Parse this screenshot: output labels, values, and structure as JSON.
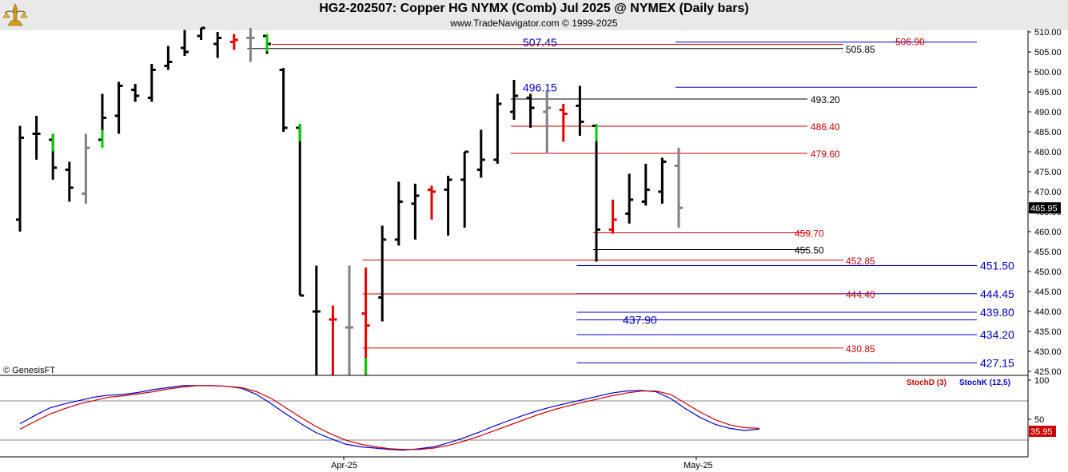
{
  "header": {
    "title": "HG2-202507:  Copper HG NYMX (Comb) Jul 2025 @ NYMEX  (Daily bars)",
    "subtitle": "www.TradeNavigator.com © 1999-2025"
  },
  "copyright": "© GenesisFT",
  "colors": {
    "up": "#000000",
    "down": "#000000",
    "red_bar": "#e60000",
    "gray_bar": "#808080",
    "green": "#00cc00",
    "level_red": "#cc0000",
    "level_blue": "#0000cc",
    "level_black": "#000000",
    "stochD": "#cc0000",
    "stochK": "#0000cc",
    "price_badge_bg": "#000000"
  },
  "chart_data": [
    {
      "type": "ohlc",
      "y_ticks": [
        "510.00",
        "505.00",
        "500.00",
        "495.00",
        "490.00",
        "485.00",
        "480.00",
        "475.00",
        "470.00",
        "465.00",
        "460.00",
        "455.00",
        "450.00",
        "445.00",
        "440.00",
        "435.00",
        "430.00",
        "425.00"
      ],
      "ylim": [
        424,
        511
      ],
      "last_price": "465.95",
      "bars": [
        {
          "o": 463.0,
          "h": 486.5,
          "l": 460.0,
          "c": 483.5,
          "color": "black"
        },
        {
          "o": 484.5,
          "h": 489.0,
          "l": 478.0,
          "c": 484.5,
          "color": "black"
        },
        {
          "o": 483.0,
          "h": 484.5,
          "l": 473.0,
          "c": 476.0,
          "color": "black",
          "green_top": true
        },
        {
          "o": 475.5,
          "h": 477.5,
          "l": 467.5,
          "c": 471.0,
          "color": "black"
        },
        {
          "o": 469.5,
          "h": 484.5,
          "l": 467.0,
          "c": 481.0,
          "color": "gray"
        },
        {
          "o": 483.0,
          "h": 494.5,
          "l": 481.0,
          "c": 488.5,
          "color": "black",
          "green_top": false,
          "green_bottom": true
        },
        {
          "o": 489.0,
          "h": 497.5,
          "l": 484.5,
          "c": 496.5,
          "color": "black"
        },
        {
          "o": 495.5,
          "h": 497.0,
          "l": 492.5,
          "c": 494.0,
          "color": "black"
        },
        {
          "o": 493.5,
          "h": 502.0,
          "l": 492.5,
          "c": 500.5,
          "color": "black"
        },
        {
          "o": 501.5,
          "h": 506.5,
          "l": 500.5,
          "c": 502.5,
          "color": "black"
        },
        {
          "o": 506.0,
          "h": 510.5,
          "l": 504.0,
          "c": 505.0,
          "color": "black"
        },
        {
          "o": 509.0,
          "h": 512.0,
          "l": 508.0,
          "c": 511.0,
          "color": "black"
        },
        {
          "o": 507.0,
          "h": 510.0,
          "l": 503.5,
          "c": 508.5,
          "color": "black"
        },
        {
          "o": 507.5,
          "h": 509.5,
          "l": 505.5,
          "c": 508.0,
          "color": "red"
        },
        {
          "o": 508.5,
          "h": 511.0,
          "l": 502.5,
          "c": 508.5,
          "color": "gray"
        },
        {
          "o": 509.0,
          "h": 509.5,
          "l": 504.5,
          "c": 507.0,
          "color": "black",
          "green_top": true
        },
        {
          "o": 500.5,
          "h": 501.0,
          "l": 485.0,
          "c": 486.0,
          "color": "black"
        },
        {
          "o": 486.0,
          "h": 487.0,
          "l": 444.0,
          "c": 444.0,
          "color": "black",
          "green_top": true
        },
        {
          "o": 440.0,
          "h": 451.5,
          "l": 424.0,
          "c": 440.0,
          "color": "black"
        },
        {
          "o": 438.0,
          "h": 441.5,
          "l": 424.0,
          "c": 438.0,
          "color": "red"
        },
        {
          "o": 436.0,
          "h": 451.5,
          "l": 424.0,
          "c": 436.0,
          "color": "gray"
        },
        {
          "o": 439.5,
          "h": 451.0,
          "l": 424.0,
          "c": 436.5,
          "color": "red",
          "green_bottom": true
        },
        {
          "o": 443.5,
          "h": 461.5,
          "l": 437.5,
          "c": 458.0,
          "color": "black"
        },
        {
          "o": 458.0,
          "h": 472.5,
          "l": 456.5,
          "c": 467.5,
          "color": "black"
        },
        {
          "o": 467.0,
          "h": 472.0,
          "l": 458.0,
          "c": 469.0,
          "color": "black"
        },
        {
          "o": 470.5,
          "h": 471.5,
          "l": 463.0,
          "c": 470.0,
          "color": "red"
        },
        {
          "o": 470.5,
          "h": 474.0,
          "l": 459.0,
          "c": 473.0,
          "color": "black"
        },
        {
          "o": 473.0,
          "h": 480.0,
          "l": 461.0,
          "c": 480.0,
          "color": "black"
        },
        {
          "o": 475.5,
          "h": 485.5,
          "l": 473.5,
          "c": 478.0,
          "color": "black"
        },
        {
          "o": 478.0,
          "h": 494.5,
          "l": 477.0,
          "c": 492.0,
          "color": "black"
        },
        {
          "o": 490.0,
          "h": 498.0,
          "l": 488.0,
          "c": 494.0,
          "color": "black"
        },
        {
          "o": 493.5,
          "h": 494.5,
          "l": 486.0,
          "c": 491.0,
          "color": "black"
        },
        {
          "o": 490.0,
          "h": 495.0,
          "l": 479.5,
          "c": 491.0,
          "color": "gray"
        },
        {
          "o": 490.5,
          "h": 492.0,
          "l": 482.5,
          "c": 489.5,
          "color": "red"
        },
        {
          "o": 491.5,
          "h": 496.5,
          "l": 484.0,
          "c": 487.5,
          "color": "black",
          "green_top": false
        },
        {
          "o": 486.5,
          "h": 487.0,
          "l": 452.5,
          "c": 460.5,
          "color": "black",
          "green_top": true
        },
        {
          "o": 460.5,
          "h": 468.0,
          "l": 459.5,
          "c": 463.0,
          "color": "red"
        },
        {
          "o": 464.5,
          "h": 474.5,
          "l": 462.0,
          "c": 468.0,
          "color": "black"
        },
        {
          "o": 467.5,
          "h": 477.0,
          "l": 466.5,
          "c": 470.5,
          "color": "black"
        },
        {
          "o": 470.0,
          "h": 478.5,
          "l": 467.0,
          "c": 477.5,
          "color": "black"
        },
        {
          "o": 476.5,
          "h": 481.0,
          "l": 461.0,
          "c": 465.95,
          "color": "gray"
        }
      ],
      "levels": [
        {
          "value": 507.45,
          "label": "507.45",
          "color": "blue",
          "from": 40,
          "to": 0,
          "label_at": 17,
          "big": true
        },
        {
          "value": 506.9,
          "label": "506.90",
          "color": "red",
          "from": 0,
          "to": 0,
          "label_at": 27,
          "big": false
        },
        {
          "value": 505.85,
          "label": "505.85",
          "color": "black",
          "from": 14,
          "to": 0,
          "label_at": 25,
          "big": false
        },
        {
          "value": 496.15,
          "label": "496.15",
          "color": "blue",
          "from": 40,
          "to": 0,
          "label_at": 21,
          "big": true
        },
        {
          "value": 493.2,
          "label": "493.20",
          "color": "black",
          "from": 30,
          "to": 0,
          "label_at": 34,
          "big": false
        },
        {
          "value": 486.4,
          "label": "486.40",
          "color": "red",
          "from": 30,
          "to": 0,
          "label_at": 34,
          "big": false
        },
        {
          "value": 479.6,
          "label": "479.60",
          "color": "red",
          "from": 30,
          "to": 0,
          "label_at": 34,
          "big": false
        },
        {
          "value": 459.7,
          "label": "459.70",
          "color": "red",
          "from": 35,
          "to": 0,
          "label_at": 38,
          "big": false
        },
        {
          "value": 455.5,
          "label": "455.50",
          "color": "black",
          "from": 35,
          "to": 0,
          "label_at": 38,
          "big": false
        },
        {
          "value": 452.85,
          "label": "452.85",
          "color": "red",
          "from": 21,
          "to": 0,
          "label_at": 43,
          "big": false
        },
        {
          "value": 451.5,
          "label": "451.50",
          "color": "blue",
          "from": 34,
          "to": 0,
          "label_at": 50,
          "big": true
        },
        {
          "value": 444.45,
          "label": "444.45",
          "color": "blue",
          "from": 34,
          "to": 0,
          "label_at": 50,
          "big": true
        },
        {
          "value": 444.4,
          "label": "444.40",
          "color": "red",
          "from": 21,
          "to": 0,
          "label_at": 43,
          "big": false
        },
        {
          "value": 439.8,
          "label": "439.80",
          "color": "blue",
          "from": 34,
          "to": 0,
          "label_at": 50,
          "big": true
        },
        {
          "value": 437.9,
          "label": "437.90",
          "color": "blue",
          "from": 34,
          "to": 0,
          "label_at": 32,
          "big": true
        },
        {
          "value": 434.2,
          "label": "434.20",
          "color": "blue",
          "from": 34,
          "to": 0,
          "label_at": 50,
          "big": true
        },
        {
          "value": 430.85,
          "label": "430.85",
          "color": "red",
          "from": 21,
          "to": 0,
          "label_at": 43,
          "big": false
        },
        {
          "value": 427.15,
          "label": "427.15",
          "color": "blue",
          "from": 34,
          "to": 0,
          "label_at": 50,
          "big": true
        }
      ]
    },
    {
      "type": "line",
      "legend": [
        "StochD (3)",
        "StochK (12,5)"
      ],
      "y_ticks": [
        "100",
        "50"
      ],
      "last_value": "35.95",
      "ylim": [
        0,
        105
      ],
      "series": [
        {
          "name": "StochK (12,5)",
          "values": [
            43,
            55,
            66,
            72,
            77,
            82,
            85,
            86,
            89,
            93,
            96,
            99,
            99,
            99,
            98,
            95,
            86,
            72,
            57,
            43,
            30,
            21,
            13,
            9,
            7,
            5,
            4,
            6,
            9,
            15,
            22,
            30,
            39,
            47,
            55,
            62,
            68,
            73,
            78,
            83,
            88,
            91,
            92,
            90,
            80,
            65,
            52,
            42,
            36,
            33,
            35
          ]
        },
        {
          "name": "StochD (3)",
          "values": [
            35,
            46,
            57,
            65,
            72,
            77,
            82,
            84,
            87,
            90,
            94,
            97,
            99,
            99,
            98,
            96,
            90,
            80,
            66,
            52,
            39,
            28,
            19,
            13,
            9,
            6,
            5,
            5,
            7,
            11,
            17,
            24,
            32,
            40,
            48,
            56,
            63,
            69,
            74,
            79,
            84,
            88,
            91,
            91,
            86,
            73,
            60,
            49,
            41,
            37,
            35.95
          ]
        }
      ]
    }
  ],
  "x_labels": [
    "Apr-25",
    "May-25"
  ]
}
